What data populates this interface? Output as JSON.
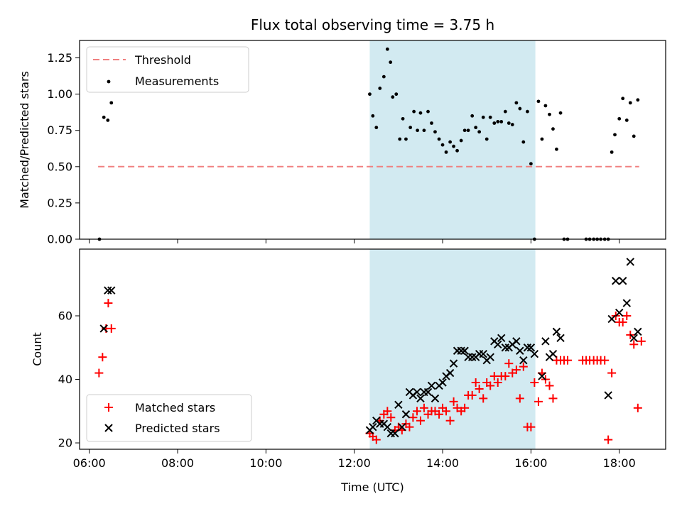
{
  "title": "Flux total observing time = 3.75 h",
  "colors": {
    "threshold": "#f08080",
    "span": "#add8e6",
    "matched": "#ff0000",
    "predicted": "#000000",
    "measure": "#000000"
  },
  "chart_data": [
    {
      "type": "scatter",
      "ylabel": "Matched/Predicted stars",
      "ylim": [
        0,
        1.37
      ],
      "xlim": [
        5.78,
        19.05
      ],
      "yticks": [
        "0.00",
        "0.25",
        "0.50",
        "0.75",
        "1.00",
        "1.25"
      ],
      "legend": {
        "placement": "top-left",
        "entries": [
          "Threshold",
          "Measurements"
        ]
      },
      "threshold": {
        "name": "Threshold",
        "y": 0.5,
        "x": [
          6.2,
          18.45
        ]
      },
      "highlight_span": [
        12.35,
        16.1
      ],
      "series": [
        {
          "name": "Measurements",
          "x": [
            6.23,
            6.33,
            6.42,
            6.5,
            12.35,
            12.42,
            12.5,
            12.58,
            12.67,
            12.75,
            12.82,
            12.87,
            12.95,
            13.03,
            13.1,
            13.17,
            13.27,
            13.35,
            13.43,
            13.5,
            13.58,
            13.67,
            13.75,
            13.83,
            13.92,
            14.0,
            14.08,
            14.17,
            14.25,
            14.33,
            14.42,
            14.5,
            14.58,
            14.67,
            14.75,
            14.83,
            14.92,
            15.0,
            15.08,
            15.17,
            15.25,
            15.33,
            15.42,
            15.5,
            15.58,
            15.67,
            15.75,
            15.83,
            15.92,
            16.0,
            16.08,
            16.17,
            16.25,
            16.33,
            16.42,
            16.5,
            16.58,
            16.67,
            16.75,
            16.83,
            17.25,
            17.33,
            17.42,
            17.5,
            17.58,
            17.67,
            17.75,
            17.83,
            17.9,
            18.0,
            18.08,
            18.17,
            18.25,
            18.33,
            18.42
          ],
          "y": [
            0.0,
            0.84,
            0.82,
            0.94,
            1.0,
            0.85,
            0.77,
            1.04,
            1.12,
            1.31,
            1.22,
            0.98,
            1.0,
            0.69,
            0.83,
            0.69,
            0.77,
            0.88,
            0.75,
            0.87,
            0.75,
            0.88,
            0.8,
            0.74,
            0.69,
            0.65,
            0.6,
            0.67,
            0.64,
            0.61,
            0.68,
            0.75,
            0.75,
            0.85,
            0.77,
            0.74,
            0.84,
            0.69,
            0.84,
            0.8,
            0.81,
            0.81,
            0.88,
            0.8,
            0.79,
            0.94,
            0.9,
            0.67,
            0.88,
            0.52,
            0.0,
            0.95,
            0.69,
            0.92,
            0.86,
            0.76,
            0.62,
            0.87,
            0.0,
            0.0,
            0.0,
            0.0,
            0.0,
            0.0,
            0.0,
            0.0,
            0.0,
            0.6,
            0.72,
            0.83,
            0.97,
            0.82,
            0.94,
            0.71,
            0.96
          ]
        }
      ]
    },
    {
      "type": "scatter",
      "xlabel": "Time (UTC)",
      "ylabel": "Count",
      "ylim": [
        18,
        81
      ],
      "xlim": [
        5.78,
        19.05
      ],
      "yticks": [
        "20",
        "40",
        "60"
      ],
      "xticks": [
        "06:00",
        "08:00",
        "10:00",
        "12:00",
        "14:00",
        "16:00",
        "18:00"
      ],
      "legend": {
        "placement": "bottom-left",
        "entries": [
          "Matched stars",
          "Predicted stars"
        ]
      },
      "highlight_span": [
        12.35,
        16.1
      ],
      "series": [
        {
          "name": "Matched stars",
          "x": [
            6.22,
            6.3,
            6.38,
            6.43,
            6.5,
            12.35,
            12.42,
            12.5,
            12.58,
            12.67,
            12.75,
            12.83,
            12.92,
            13.0,
            13.08,
            13.17,
            13.25,
            13.33,
            13.42,
            13.5,
            13.58,
            13.67,
            13.75,
            13.83,
            13.92,
            14.0,
            14.08,
            14.17,
            14.25,
            14.33,
            14.42,
            14.5,
            14.58,
            14.67,
            14.75,
            14.83,
            14.92,
            15.0,
            15.08,
            15.17,
            15.25,
            15.33,
            15.42,
            15.5,
            15.58,
            15.67,
            15.75,
            15.83,
            15.92,
            16.0,
            16.08,
            16.17,
            16.25,
            16.33,
            16.42,
            16.5,
            16.58,
            16.67,
            16.75,
            16.83,
            17.17,
            17.25,
            17.33,
            17.42,
            17.5,
            17.58,
            17.67,
            17.75,
            17.83,
            17.92,
            18.0,
            18.08,
            18.17,
            18.25,
            18.33,
            18.42,
            18.5
          ],
          "y": [
            42,
            47,
            56,
            64,
            56,
            23,
            22,
            21,
            27,
            29,
            30,
            28,
            24,
            25,
            24,
            26,
            25,
            28,
            30,
            27,
            31,
            29,
            30,
            30,
            29,
            31,
            30,
            27,
            33,
            31,
            30,
            31,
            35,
            35,
            39,
            37,
            34,
            39,
            38,
            41,
            39,
            41,
            41,
            45,
            42,
            43,
            34,
            44,
            25,
            25,
            39,
            33,
            42,
            40,
            38,
            34,
            46,
            46,
            46,
            46,
            46,
            46,
            46,
            46,
            46,
            46,
            46,
            21,
            42,
            60,
            58,
            58,
            60,
            54,
            51,
            31,
            52
          ],
          "marker": "+"
        },
        {
          "name": "Predicted stars",
          "x": [
            6.33,
            6.42,
            6.5,
            12.35,
            12.42,
            12.5,
            12.58,
            12.67,
            12.75,
            12.83,
            12.92,
            13.0,
            13.08,
            13.17,
            13.25,
            13.33,
            13.42,
            13.5,
            13.58,
            13.67,
            13.75,
            13.83,
            13.92,
            14.0,
            14.08,
            14.17,
            14.25,
            14.33,
            14.42,
            14.5,
            14.58,
            14.67,
            14.75,
            14.83,
            14.92,
            15.0,
            15.08,
            15.17,
            15.25,
            15.33,
            15.42,
            15.5,
            15.58,
            15.67,
            15.75,
            15.83,
            15.92,
            16.0,
            16.08,
            16.25,
            16.33,
            16.42,
            16.5,
            16.58,
            16.67,
            17.75,
            17.83,
            17.92,
            18.0,
            18.08,
            18.17,
            18.25,
            18.33,
            18.42
          ],
          "y": [
            56,
            68,
            68,
            24,
            25,
            27,
            26,
            26,
            25,
            23,
            23,
            32,
            25,
            29,
            36,
            35,
            36,
            34,
            36,
            36,
            38,
            34,
            38,
            39,
            41,
            42,
            45,
            49,
            49,
            49,
            47,
            47,
            47,
            48,
            48,
            46,
            47,
            52,
            51,
            53,
            50,
            50,
            51,
            52,
            49,
            46,
            50,
            50,
            48,
            41,
            52,
            47,
            48,
            55,
            53,
            35,
            59,
            71,
            61,
            71,
            64,
            77,
            53,
            55
          ],
          "marker": "x"
        }
      ]
    }
  ]
}
